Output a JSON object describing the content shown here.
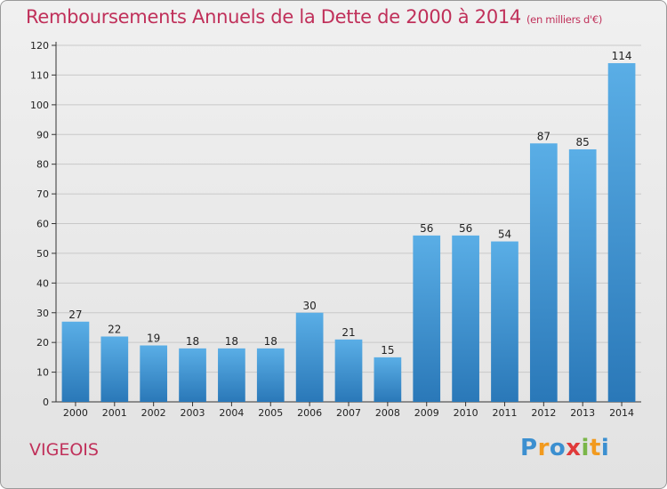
{
  "chart_data": {
    "type": "bar",
    "title": "Remboursements Annuels de la Dette de 2000 à 2014",
    "subtitle": "(en milliers d'€)",
    "xlabel": "",
    "ylabel": "",
    "categories": [
      "2000",
      "2001",
      "2002",
      "2003",
      "2004",
      "2005",
      "2006",
      "2007",
      "2008",
      "2009",
      "2010",
      "2011",
      "2012",
      "2013",
      "2014"
    ],
    "values": [
      27,
      22,
      19,
      18,
      18,
      18,
      30,
      21,
      15,
      56,
      56,
      54,
      87,
      85,
      114
    ],
    "ylim": [
      0,
      120
    ],
    "yticks": [
      0,
      10,
      20,
      30,
      40,
      50,
      60,
      70,
      80,
      90,
      100,
      110,
      120
    ],
    "grid": true,
    "colors": {
      "bar_top": "#5aaee6",
      "bar_bottom": "#2a78b8",
      "title": "#c0305a",
      "grid": "#c8c8c8"
    }
  },
  "commune": "VIGEOIS",
  "logo": {
    "letters": [
      "P",
      "r",
      "o",
      "x",
      "i",
      "t",
      "i"
    ],
    "colors": [
      "#3b8fd0",
      "#f29a1e",
      "#3b8fd0",
      "#e03a3a",
      "#7ab648",
      "#f29a1e",
      "#3b8fd0"
    ]
  }
}
